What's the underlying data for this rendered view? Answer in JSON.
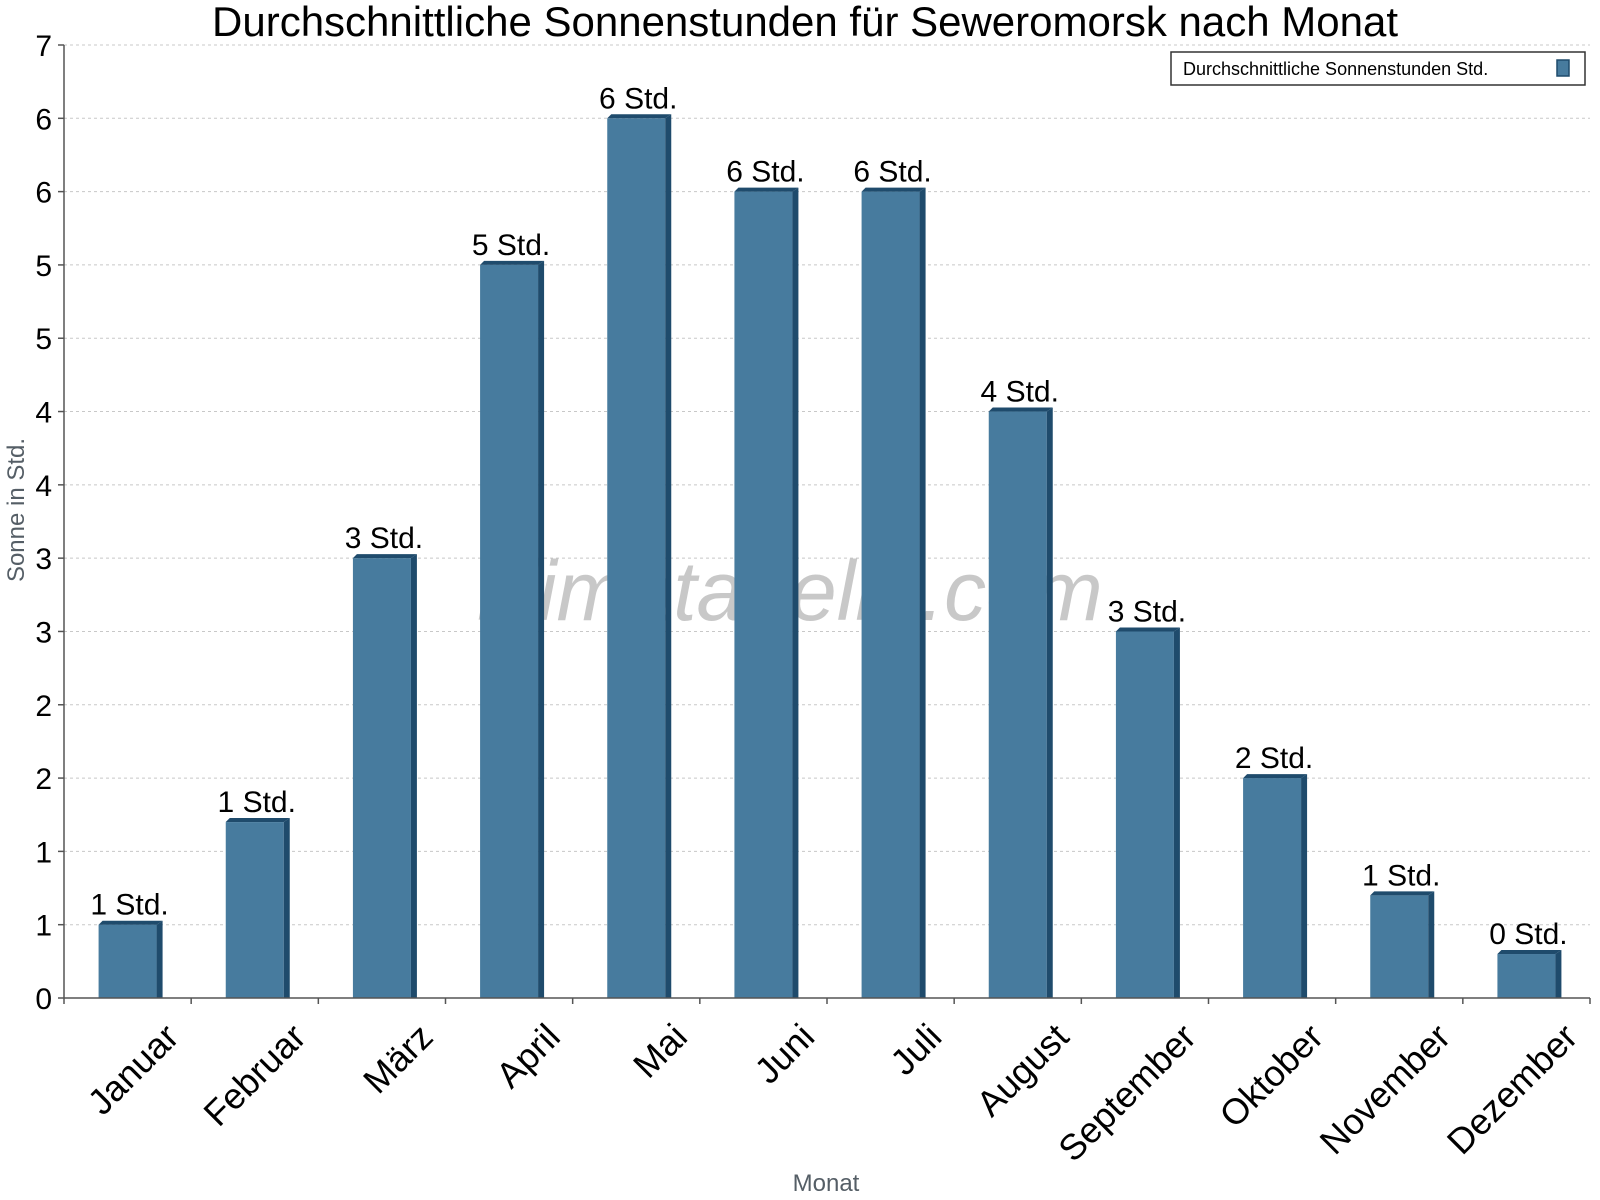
{
  "chart_data": {
    "type": "bar",
    "title": "Durchschnittliche Sonnenstunden für Seweromorsk nach Monat",
    "xlabel": "Monat",
    "ylabel": "Sonne in Std.",
    "ylim": [
      0,
      6.5
    ],
    "y_ticks": [
      "0",
      "1",
      "1",
      "2",
      "2",
      "3",
      "3",
      "4",
      "4",
      "5",
      "5",
      "6",
      "6",
      "7"
    ],
    "y_tick_step": 0.5,
    "grid": true,
    "legend_position": "top-right",
    "categories": [
      "Januar",
      "Februar",
      "März",
      "April",
      "Mai",
      "Juni",
      "Juli",
      "August",
      "September",
      "Oktober",
      "November",
      "Dezember"
    ],
    "series": [
      {
        "name": "Durchschnittliche Sonnenstunden Std.",
        "values": [
          0.5,
          1.2,
          3.0,
          5.0,
          6.0,
          5.5,
          5.5,
          4.0,
          2.5,
          1.5,
          0.7,
          0.3
        ],
        "labels": [
          "1 Std.",
          "1 Std.",
          "3 Std.",
          "5 Std.",
          "6 Std.",
          "6 Std.",
          "6 Std.",
          "4 Std.",
          "3 Std.",
          "2 Std.",
          "1 Std.",
          "0 Std."
        ]
      }
    ],
    "colors": {
      "bar": "#477b9e",
      "bar_side": "#1f4b6c",
      "grid": "#c8c8c8",
      "axis": "#555555"
    }
  },
  "watermark": "klimatabelle.com"
}
